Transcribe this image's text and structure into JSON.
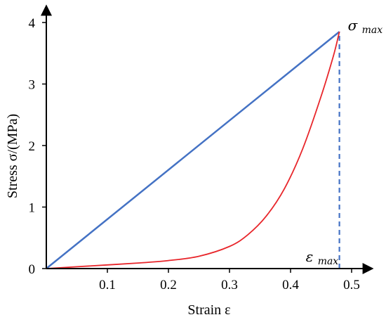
{
  "chart_data": {
    "type": "line",
    "title": "",
    "xlabel": "Strain  ε",
    "ylabel": "Stress σ/(MPa)",
    "xlim": [
      0,
      0.55
    ],
    "ylim": [
      0,
      4.2
    ],
    "x_ticks": [
      0.1,
      0.2,
      0.3,
      0.4,
      0.5
    ],
    "x_tick_labels": [
      "0.1",
      "0.2",
      "0.3",
      "0.4",
      "0.5"
    ],
    "y_ticks": [
      0,
      1,
      2,
      3,
      4
    ],
    "y_tick_labels": [
      "0",
      "1",
      "2",
      "3",
      "4"
    ],
    "grid": false,
    "series": [
      {
        "color": "#4472c4",
        "x": [
          0,
          0.48
        ],
        "y": [
          0,
          3.85
        ]
      },
      {
        "color": "#e8262b",
        "x": [
          0,
          0.05,
          0.1,
          0.15,
          0.2,
          0.25,
          0.3,
          0.33,
          0.36,
          0.39,
          0.42,
          0.45,
          0.47,
          0.48
        ],
        "y": [
          0,
          0.03,
          0.06,
          0.09,
          0.13,
          0.2,
          0.36,
          0.55,
          0.85,
          1.3,
          1.95,
          2.8,
          3.45,
          3.85
        ]
      }
    ],
    "annotations": {
      "sigma_max": {
        "base": "σ",
        "sub": "max",
        "x": 0.48,
        "y": 3.85
      },
      "eps_max": {
        "base": "ε",
        "sub": "max",
        "x": 0.48,
        "y": 0
      }
    },
    "dashed_guide": {
      "color": "#4472c4",
      "x": 0.48,
      "y_from": 0,
      "y_to": 3.85
    }
  }
}
